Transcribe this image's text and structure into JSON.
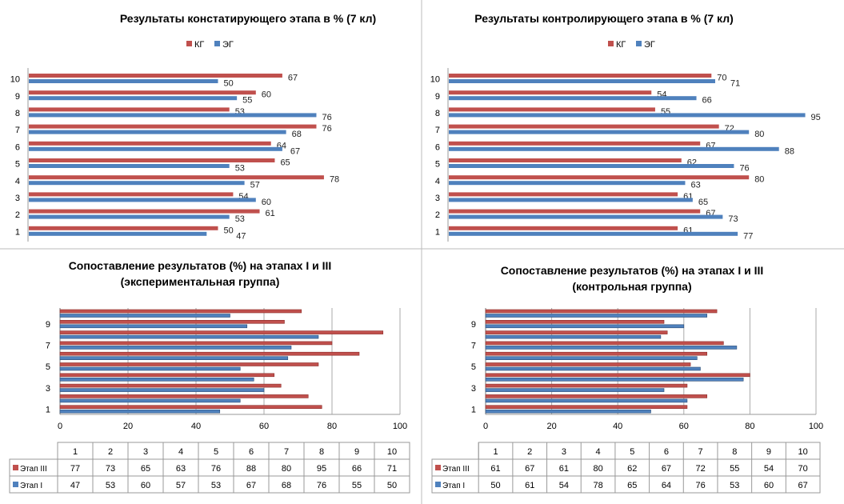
{
  "colors": {
    "red": "#c0504d",
    "blue": "#4f81bd"
  },
  "chart_data": [
    {
      "type": "bar",
      "orientation": "horizontal",
      "title": "Результаты констатирующего этапа в % (7 кл)",
      "legend_position": "top",
      "categories": [
        "1",
        "2",
        "3",
        "4",
        "5",
        "6",
        "7",
        "8",
        "9",
        "10"
      ],
      "series": [
        {
          "name": "КГ",
          "color": "#c0504d",
          "values": [
            50,
            61,
            54,
            78,
            65,
            64,
            76,
            53,
            60,
            67
          ]
        },
        {
          "name": "ЭГ",
          "color": "#4f81bd",
          "values": [
            47,
            53,
            60,
            57,
            53,
            67,
            68,
            76,
            55,
            50
          ]
        }
      ],
      "data_labels": true,
      "grid": false
    },
    {
      "type": "bar",
      "orientation": "horizontal",
      "title": "Результаты контролирующего этапа в % (7 кл)",
      "legend_position": "top",
      "categories": [
        "1",
        "2",
        "3",
        "4",
        "5",
        "6",
        "7",
        "8",
        "9",
        "10"
      ],
      "series": [
        {
          "name": "КГ",
          "color": "#c0504d",
          "values": [
            61,
            67,
            61,
            80,
            62,
            67,
            72,
            55,
            54,
            70
          ]
        },
        {
          "name": "ЭГ",
          "color": "#4f81bd",
          "values": [
            77,
            73,
            65,
            63,
            76,
            88,
            80,
            95,
            66,
            71
          ]
        }
      ],
      "data_labels": true,
      "grid": false
    },
    {
      "type": "bar",
      "orientation": "horizontal",
      "title": "Сопоставление результатов (%) на этапах I и III",
      "subtitle": "(экспериментальная группа)",
      "categories": [
        "1",
        "2",
        "3",
        "4",
        "5",
        "6",
        "7",
        "8",
        "9",
        "10"
      ],
      "y_tick_labels": [
        "1",
        "3",
        "5",
        "7",
        "9"
      ],
      "x_ticks": [
        "0",
        "20",
        "40",
        "60",
        "80",
        "100"
      ],
      "xlim": [
        0,
        100
      ],
      "grid": true,
      "data_table": true,
      "series": [
        {
          "name": "Этап III",
          "color": "#c0504d",
          "values": [
            77,
            73,
            65,
            63,
            76,
            88,
            80,
            95,
            66,
            71
          ]
        },
        {
          "name": "Этап I",
          "color": "#4f81bd",
          "values": [
            47,
            53,
            60,
            57,
            53,
            67,
            68,
            76,
            55,
            50
          ]
        }
      ]
    },
    {
      "type": "bar",
      "orientation": "horizontal",
      "title": "Сопоставление результатов (%) на этапах I и III",
      "subtitle": "(контрольная группа)",
      "categories": [
        "1",
        "2",
        "3",
        "4",
        "5",
        "6",
        "7",
        "8",
        "9",
        "10"
      ],
      "y_tick_labels": [
        "1",
        "3",
        "5",
        "7",
        "9"
      ],
      "x_ticks": [
        "0",
        "20",
        "40",
        "60",
        "80",
        "100"
      ],
      "xlim": [
        0,
        100
      ],
      "grid": true,
      "data_table": true,
      "series": [
        {
          "name": "Этап III",
          "color": "#c0504d",
          "values": [
            61,
            67,
            61,
            80,
            62,
            67,
            72,
            55,
            54,
            70
          ]
        },
        {
          "name": "Этап I",
          "color": "#4f81bd",
          "values": [
            50,
            61,
            54,
            78,
            65,
            64,
            76,
            53,
            60,
            67
          ]
        }
      ]
    }
  ]
}
